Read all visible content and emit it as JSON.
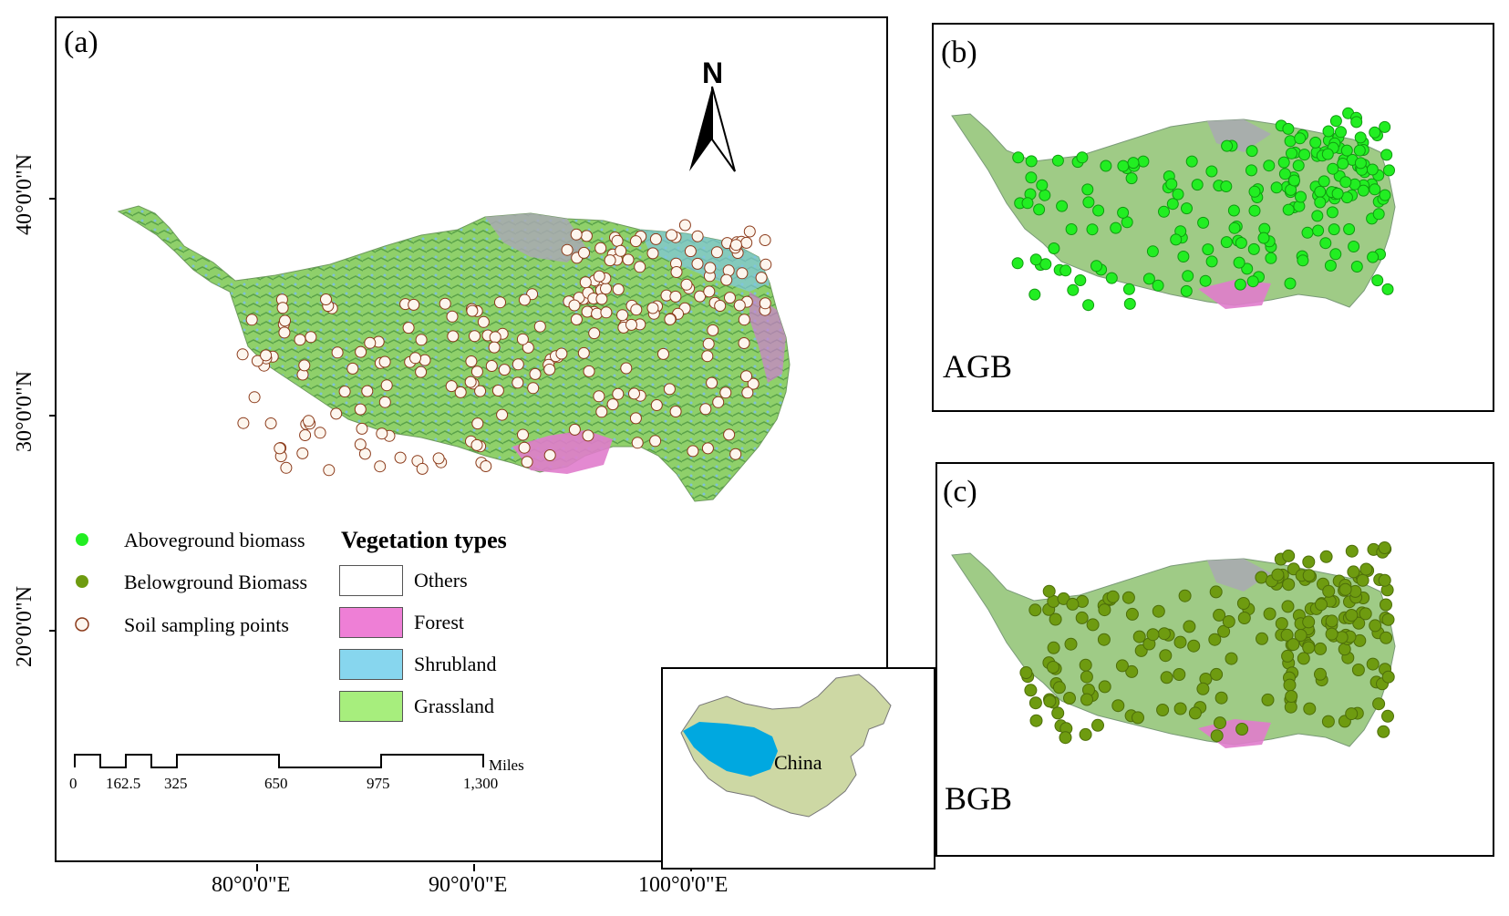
{
  "panel_a": {
    "tag": "(a)",
    "north_label": "N",
    "lat_labels": [
      "40°0'0\"N",
      "30°0'0\"N",
      "20°0'0\"N"
    ],
    "lon_labels": [
      "80°0'0\"E",
      "90°0'0\"E",
      "100°0'0\"E"
    ],
    "point_legend": [
      "Aboveground biomass",
      "Belowground Biomass",
      "Soil sampling points"
    ],
    "veg_title": "Vegetation types",
    "veg_legend": [
      "Others",
      "Forest",
      "Shrubland",
      "Grassland"
    ],
    "scale_labels": [
      "0",
      "162.5",
      "325",
      "650",
      "975",
      "1,300"
    ],
    "scale_unit": "Miles",
    "inset_label": "China"
  },
  "panel_b": {
    "tag": "(b)",
    "name": "AGB"
  },
  "panel_c": {
    "tag": "(c)",
    "name": "BGB"
  },
  "colors": {
    "agb": "#22ee22",
    "bgb": "#6e9b10",
    "soil_fill": "#fdf6ee",
    "soil_stroke": "#8b3a1a",
    "grassland": "#a7ee7d",
    "shrubland": "#87d6ee",
    "forest": "#ee7fd6",
    "others": "#ffffff",
    "china": "#cdd8a4",
    "plateau_inset": "#00a8e0"
  }
}
